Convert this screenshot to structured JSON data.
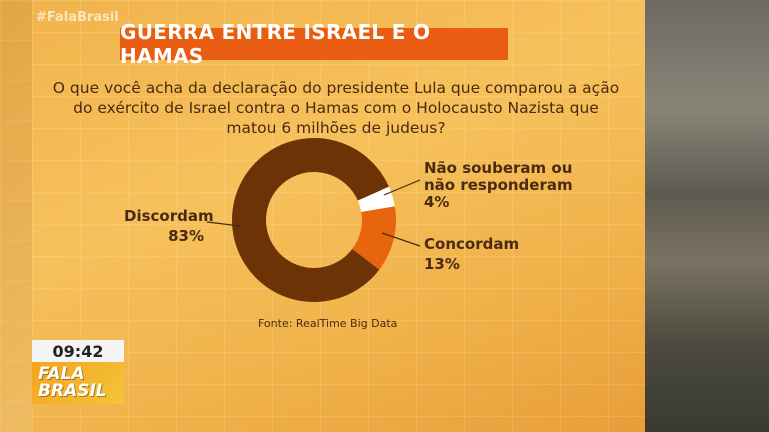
{
  "brand": {
    "hashtag": "#FalaBrasil",
    "logo_line1": "FALA",
    "logo_line2": "BRASIL"
  },
  "clock": "09:42",
  "title": "GUERRA ENTRE ISRAEL E O HAMAS",
  "question": "O que você acha da declaração do presidente Lula que comparou a ação do exército de Israel contra o Hamas com o Holocausto Nazista que matou 6 milhões de judeus?",
  "source": "Fonte: RealTime Big Data",
  "colors": {
    "discordam": "#6b3306",
    "concordam": "#e8650f",
    "nao_souberam": "#ffffff",
    "title_bg": "#e85d12",
    "text": "#4a2a12"
  },
  "chart_data": {
    "type": "pie",
    "donut": true,
    "title": "",
    "slices": [
      {
        "label": "Discordam",
        "value": 83,
        "display": "83%",
        "color": "#6b3306"
      },
      {
        "label": "Concordam",
        "value": 13,
        "display": "13%",
        "color": "#e8650f"
      },
      {
        "label": "Não souberam ou não responderam",
        "label_line1": "Não souberam ou",
        "label_line2": "não responderam",
        "value": 4,
        "display": "4%",
        "color": "#ffffff"
      }
    ]
  }
}
